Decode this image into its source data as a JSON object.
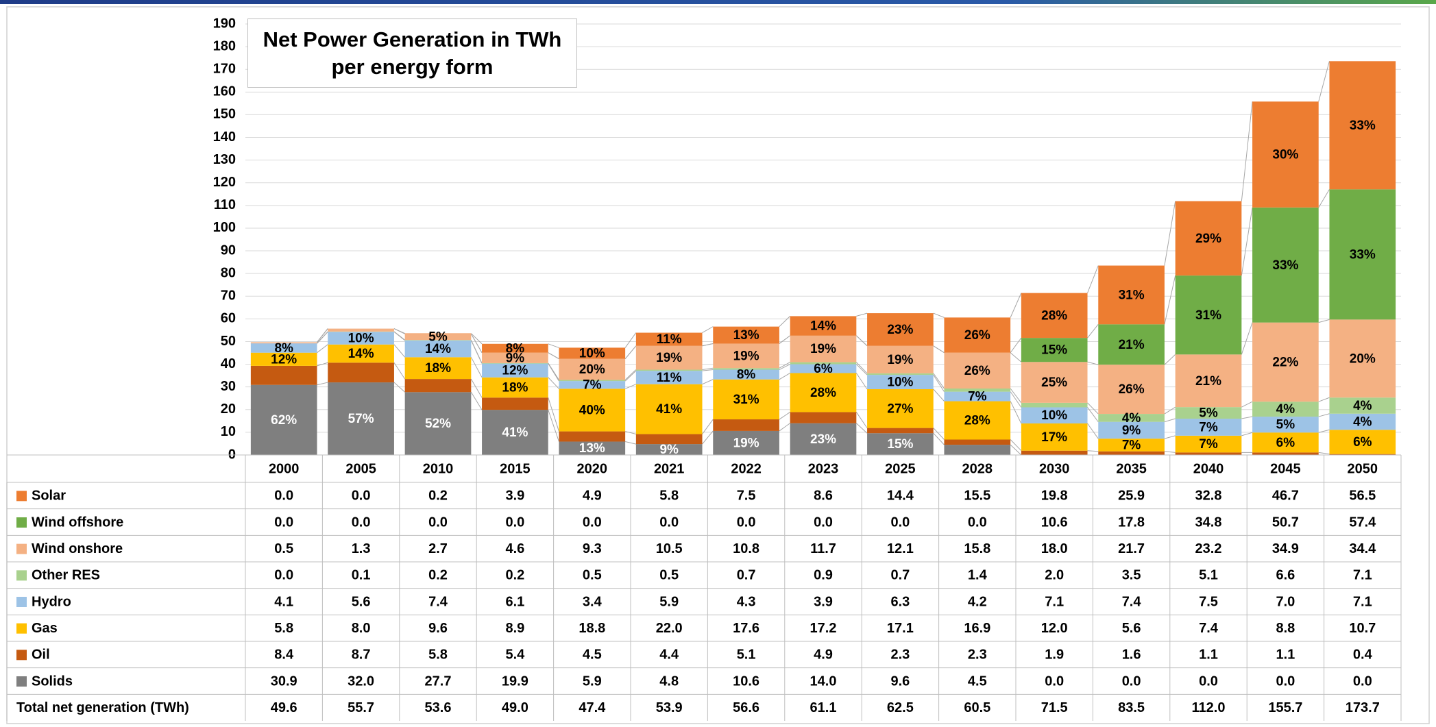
{
  "chart_data": {
    "type": "stacked_bar",
    "title": "Net Power Generation in TWh per energy form",
    "categories": [
      "2000",
      "2005",
      "2010",
      "2015",
      "2020",
      "2021",
      "2022",
      "2023",
      "2025",
      "2028",
      "2030",
      "2035",
      "2040",
      "2045",
      "2050"
    ],
    "ylim": [
      0,
      190
    ],
    "yticks": [
      0,
      10,
      20,
      30,
      40,
      50,
      60,
      70,
      80,
      90,
      100,
      110,
      120,
      130,
      140,
      150,
      160,
      170,
      180,
      190
    ],
    "grid": true,
    "series": [
      {
        "name": "Solar",
        "color": "#ed7d31",
        "label_color": "#000000",
        "values": [
          0.0,
          0.0,
          0.2,
          3.9,
          4.9,
          5.8,
          7.5,
          8.6,
          14.4,
          15.5,
          19.8,
          25.9,
          32.8,
          46.7,
          56.5
        ],
        "value_labels": [
          "0.0",
          "0.0",
          "0.2",
          "3.9",
          "4.9",
          "5.8",
          "7.5",
          "8.6",
          "14.4",
          "15.5",
          "19.8",
          "25.9",
          "32.8",
          "46.7",
          "56.5"
        ],
        "share_labels": [
          null,
          null,
          null,
          "8%",
          "10%",
          "11%",
          "13%",
          "14%",
          "23%",
          "26%",
          "28%",
          "31%",
          "29%",
          "30%",
          "33%"
        ]
      },
      {
        "name": "Wind offshore",
        "color": "#70ad47",
        "label_color": "#000000",
        "values": [
          0.0,
          0.0,
          0.0,
          0.0,
          0.0,
          0.0,
          0.0,
          0.0,
          0.0,
          0.0,
          10.6,
          17.8,
          34.8,
          50.7,
          57.4
        ],
        "value_labels": [
          "0.0",
          "0.0",
          "0.0",
          "0.0",
          "0.0",
          "0.0",
          "0.0",
          "0.0",
          "0.0",
          "0.0",
          "10.6",
          "17.8",
          "34.8",
          "50.7",
          "57.4"
        ],
        "share_labels": [
          null,
          null,
          null,
          null,
          null,
          null,
          null,
          null,
          null,
          null,
          "15%",
          "21%",
          "31%",
          "33%",
          "33%"
        ]
      },
      {
        "name": "Wind onshore",
        "color": "#f4b183",
        "label_color": "#000000",
        "values": [
          0.5,
          1.3,
          2.7,
          4.6,
          9.3,
          10.5,
          10.8,
          11.7,
          12.1,
          15.8,
          18.0,
          21.7,
          23.2,
          34.9,
          34.4
        ],
        "value_labels": [
          "0.5",
          "1.3",
          "2.7",
          "4.6",
          "9.3",
          "10.5",
          "10.8",
          "11.7",
          "12.1",
          "15.8",
          "18.0",
          "21.7",
          "23.2",
          "34.9",
          "34.4"
        ],
        "share_labels": [
          null,
          null,
          "5%",
          "9%",
          "20%",
          "19%",
          "19%",
          "19%",
          "19%",
          "26%",
          "25%",
          "26%",
          "21%",
          "22%",
          "20%"
        ]
      },
      {
        "name": "Other RES",
        "color": "#a9d18e",
        "label_color": "#000000",
        "values": [
          0.0,
          0.1,
          0.2,
          0.2,
          0.5,
          0.5,
          0.7,
          0.9,
          0.7,
          1.4,
          2.0,
          3.5,
          5.1,
          6.6,
          7.1
        ],
        "value_labels": [
          "0.0",
          "0.1",
          "0.2",
          "0.2",
          "0.5",
          "0.5",
          "0.7",
          "0.9",
          "0.7",
          "1.4",
          "2.0",
          "3.5",
          "5.1",
          "6.6",
          "7.1"
        ],
        "share_labels": [
          null,
          null,
          null,
          null,
          null,
          null,
          null,
          null,
          null,
          null,
          null,
          "4%",
          "5%",
          "4%",
          "4%"
        ]
      },
      {
        "name": "Hydro",
        "color": "#9dc3e6",
        "label_color": "#000000",
        "values": [
          4.1,
          5.6,
          7.4,
          6.1,
          3.4,
          5.9,
          4.3,
          3.9,
          6.3,
          4.2,
          7.1,
          7.4,
          7.5,
          7.0,
          7.1
        ],
        "value_labels": [
          "4.1",
          "5.6",
          "7.4",
          "6.1",
          "3.4",
          "5.9",
          "4.3",
          "3.9",
          "6.3",
          "4.2",
          "7.1",
          "7.4",
          "7.5",
          "7.0",
          "7.1"
        ],
        "share_labels": [
          "8%",
          "10%",
          "14%",
          "12%",
          "7%",
          "11%",
          "8%",
          "6%",
          "10%",
          "7%",
          "10%",
          "9%",
          "7%",
          "5%",
          "4%"
        ]
      },
      {
        "name": "Gas",
        "color": "#ffc000",
        "label_color": "#000000",
        "values": [
          5.8,
          8.0,
          9.6,
          8.9,
          18.8,
          22.0,
          17.6,
          17.2,
          17.1,
          16.9,
          12.0,
          5.6,
          7.4,
          8.8,
          10.7
        ],
        "value_labels": [
          "5.8",
          "8.0",
          "9.6",
          "8.9",
          "18.8",
          "22.0",
          "17.6",
          "17.2",
          "17.1",
          "16.9",
          "12.0",
          "5.6",
          "7.4",
          "8.8",
          "10.7"
        ],
        "share_labels": [
          "12%",
          "14%",
          "18%",
          "18%",
          "40%",
          "41%",
          "31%",
          "28%",
          "27%",
          "28%",
          "17%",
          "7%",
          "7%",
          "6%",
          "6%"
        ]
      },
      {
        "name": "Oil",
        "color": "#c55a11",
        "label_color": "#000000",
        "values": [
          8.4,
          8.7,
          5.8,
          5.4,
          4.5,
          4.4,
          5.1,
          4.9,
          2.3,
          2.3,
          1.9,
          1.6,
          1.1,
          1.1,
          0.4
        ],
        "value_labels": [
          "8.4",
          "8.7",
          "5.8",
          "5.4",
          "4.5",
          "4.4",
          "5.1",
          "4.9",
          "2.3",
          "2.3",
          "1.9",
          "1.6",
          "1.1",
          "1.1",
          "0.4"
        ],
        "share_labels": [
          null,
          null,
          null,
          null,
          null,
          null,
          null,
          null,
          null,
          null,
          null,
          null,
          null,
          null,
          null
        ]
      },
      {
        "name": "Solids",
        "color": "#7f7f7f",
        "label_color": "#ffffff",
        "values": [
          30.9,
          32.0,
          27.7,
          19.9,
          5.9,
          4.8,
          10.6,
          14.0,
          9.6,
          4.5,
          0.0,
          0.0,
          0.0,
          0.0,
          0.0
        ],
        "value_labels": [
          "30.9",
          "32.0",
          "27.7",
          "19.9",
          "5.9",
          "4.8",
          "10.6",
          "14.0",
          "9.6",
          "4.5",
          "0.0",
          "0.0",
          "0.0",
          "0.0",
          "0.0"
        ],
        "share_labels": [
          "62%",
          "57%",
          "52%",
          "41%",
          "13%",
          "9%",
          "19%",
          "23%",
          "15%",
          null,
          null,
          null,
          null,
          null,
          null
        ]
      }
    ],
    "total_row": {
      "name": "Total net generation (TWh)",
      "labels": [
        "49.6",
        "55.7",
        "53.6",
        "49.0",
        "47.4",
        "53.9",
        "56.6",
        "61.1",
        "62.5",
        "60.5",
        "71.5",
        "83.5",
        "112.0",
        "155.7",
        "173.7"
      ]
    }
  }
}
